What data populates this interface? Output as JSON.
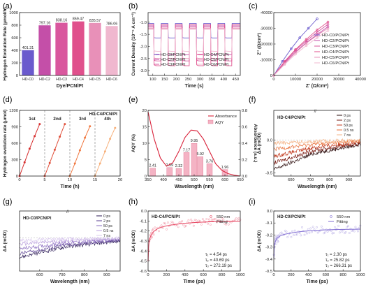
{
  "chart_data": [
    {
      "panel": "(a)",
      "type": "bar",
      "ylabel": "Hydrogen Evolution Rate (μmol/h)",
      "xlabel": "Dye/PCN/Pt",
      "categories": [
        "HD-C0",
        "HD-C2",
        "HD-C3",
        "HD-C4",
        "HD-C5",
        "HD-C6"
      ],
      "values": [
        401.31,
        797.16,
        838.16,
        859.47,
        835.57,
        786.06
      ],
      "value_labels": [
        "401.31",
        "797.16",
        "838.16",
        "859.47",
        "835.57",
        "786.06"
      ],
      "colors": [
        "#6a5acd",
        "#c44fa8",
        "#d9579e",
        "#e0508c",
        "#e890b8",
        "#f0b8cf"
      ],
      "ylim": [
        0,
        1000
      ],
      "yticks": [
        "0",
        "200",
        "400",
        "600",
        "800",
        "1000"
      ]
    },
    {
      "panel": "(b)",
      "type": "line",
      "ylabel": "Current Density (10⁻⁶ A cm⁻²)",
      "xlabel": "Time (s)",
      "xlim": [
        80,
        470
      ],
      "ylim": [
        -3.2,
        -0.6
      ],
      "xticks": [
        "100",
        "150",
        "200",
        "250",
        "300",
        "350",
        "400",
        "450"
      ],
      "yticks": [
        "-3.0",
        "-2.5",
        "-2.0",
        "-1.5",
        "-1.0"
      ],
      "legend": [
        "HD-C0/PCN/Pt",
        "HD-C4/PCN/Pt",
        "HD-C2/PCN/Pt",
        "HD-C5/PCN/Pt",
        "HD-C3/PCN/Pt",
        "HD-C6/PCN/Pt"
      ],
      "series": [
        {
          "name": "HD-C0/PCN/Pt",
          "color": "#6a5acd",
          "dark": -1.05,
          "light": -1.65
        },
        {
          "name": "HD-C2/PCN/Pt",
          "color": "#c44fa8",
          "dark": -1.15,
          "light": -2.35
        },
        {
          "name": "HD-C3/PCN/Pt",
          "color": "#d9579e",
          "dark": -1.2,
          "light": -2.6
        },
        {
          "name": "HD-C4/PCN/Pt",
          "color": "#e0508c",
          "dark": -1.1,
          "light": -2.8
        },
        {
          "name": "HD-C5/PCN/Pt",
          "color": "#e890b8",
          "dark": -1.25,
          "light": -2.5
        },
        {
          "name": "HD-C6/PCN/Pt",
          "color": "#f0b8cf",
          "dark": -1.3,
          "light": -2.2
        }
      ]
    },
    {
      "panel": "(c)",
      "type": "scatter",
      "ylabel": "Z'' (Ω/cm²)",
      "xlabel": "Z' (Ω/cm²)",
      "xlim": [
        0,
        40000
      ],
      "ylim": [
        0,
        -40000
      ],
      "xticks": [
        "0",
        "10000",
        "20000",
        "30000",
        "40000"
      ],
      "yticks": [
        "0",
        "-10000",
        "-20000",
        "-30000",
        "-40000"
      ],
      "legend": [
        "HD-C0/PCN/Pt",
        "HD-C2/PCN/Pt",
        "HD-C3/PCN/Pt",
        "HD-C4/PCN/Pt",
        "HD-C5/PCN/Pt",
        "HD-C6/PCN/Pt"
      ],
      "series": [
        {
          "name": "HD-C0/PCN/Pt",
          "color": "#6a5acd",
          "x": [
            0,
            4000,
            8000,
            12000,
            16000,
            20000
          ],
          "y": [
            0,
            -9000,
            -17000,
            -24000,
            -30000,
            -36000
          ]
        },
        {
          "name": "HD-C2/PCN/Pt",
          "color": "#c44fa8",
          "x": [
            0,
            5000,
            10000,
            15000,
            20000,
            25000
          ],
          "y": [
            0,
            -8000,
            -15000,
            -21000,
            -26000,
            -31000
          ]
        },
        {
          "name": "HD-C3/PCN/Pt",
          "color": "#d9579e",
          "x": [
            0,
            5000,
            10000,
            15000,
            20000,
            25000
          ],
          "y": [
            0,
            -8500,
            -16000,
            -22000,
            -27500,
            -32500
          ]
        },
        {
          "name": "HD-C4/PCN/Pt",
          "color": "#e0508c",
          "x": [
            0,
            5000,
            10000,
            15000,
            20000,
            25000
          ],
          "y": [
            0,
            -9000,
            -16500,
            -23000,
            -29000,
            -34000
          ]
        },
        {
          "name": "HD-C5/PCN/Pt",
          "color": "#e890b8",
          "x": [
            0,
            5000,
            10000,
            15000,
            20000,
            25000
          ],
          "y": [
            0,
            -7500,
            -14500,
            -20500,
            -25500,
            -30000
          ]
        },
        {
          "name": "HD-C6/PCN/Pt",
          "color": "#f0b8cf",
          "x": [
            0,
            5000,
            10000,
            15000,
            20000,
            25000
          ],
          "y": [
            0,
            -7000,
            -13500,
            -19000,
            -24000,
            -28500
          ]
        }
      ]
    },
    {
      "panel": "(d)",
      "type": "line",
      "ylabel": "Hydrogen evolution rate (μmol)",
      "xlabel": "Time (h)",
      "title": "HD-C4/PCN/Pt",
      "xlim": [
        0,
        20
      ],
      "ylim": [
        0,
        1200
      ],
      "xticks": [
        "0",
        "5",
        "10",
        "15",
        "20"
      ],
      "yticks": [
        "0",
        "300",
        "600",
        "900",
        "1200"
      ],
      "cycles": [
        "1st",
        "2nd",
        "3rd",
        "4th"
      ],
      "series": [
        {
          "name": "1st",
          "color": "#d62d2d",
          "x": [
            0,
            1,
            2,
            3,
            4
          ],
          "y": [
            0,
            250,
            500,
            730,
            950
          ]
        },
        {
          "name": "2nd",
          "color": "#e04f3a",
          "x": [
            5,
            6,
            7,
            8,
            9
          ],
          "y": [
            0,
            240,
            480,
            720,
            950
          ]
        },
        {
          "name": "3rd",
          "color": "#f07840",
          "x": [
            10,
            11,
            12,
            13,
            14
          ],
          "y": [
            0,
            230,
            470,
            700,
            910
          ]
        },
        {
          "name": "4th",
          "color": "#f7b07a",
          "x": [
            15,
            16,
            17,
            18,
            19
          ],
          "y": [
            0,
            230,
            450,
            680,
            880
          ]
        }
      ]
    },
    {
      "panel": "(e)",
      "type": "bar",
      "ylabel": "AQY (%)",
      "y2label": "Absorbance (a.u.)",
      "xlabel": "Wavelength (nm)",
      "legend": [
        "Absorbance",
        "AQY"
      ],
      "xlim": [
        350,
        650
      ],
      "ylim": [
        0,
        20
      ],
      "y2lim": [
        0,
        0.8
      ],
      "xticks": [
        "350",
        "400",
        "450",
        "500",
        "550",
        "600",
        "650"
      ],
      "yticks": [
        "0",
        "5",
        "10",
        "15",
        "20"
      ],
      "y2ticks": [
        "0.0",
        "0.2",
        "0.4",
        "0.6",
        "0.8"
      ],
      "x": [
        365,
        420,
        450,
        475,
        500,
        520,
        550,
        600
      ],
      "values": [
        2.41,
        2.59,
        2.32,
        7.17,
        9.95,
        5.92,
        3.76,
        1.96
      ],
      "value_labels": [
        "2.41",
        "2.59",
        "2.32",
        "7.17",
        "9.95",
        "5.92",
        "3.76",
        "1.96"
      ],
      "absorbance_x": [
        350,
        370,
        390,
        410,
        430,
        450,
        470,
        490,
        510,
        530,
        550,
        570,
        590,
        610,
        630,
        650
      ],
      "absorbance_y": [
        0.78,
        0.45,
        0.22,
        0.12,
        0.16,
        0.3,
        0.47,
        0.56,
        0.55,
        0.45,
        0.3,
        0.15,
        0.07,
        0.03,
        0.01,
        0.0
      ]
    },
    {
      "panel": "(f)",
      "type": "line",
      "ylabel": "ΔA (mOD)",
      "xlabel": "Wavelength (nm)",
      "title": "HD-C4/PCN/Pt",
      "xlim": [
        510,
        960
      ],
      "ylim": [
        -0.55,
        0.45
      ],
      "xticks": [
        "600",
        "700",
        "800",
        "900"
      ],
      "yticks": [
        "-0.5",
        "0.0"
      ],
      "legend": [
        "0 ps",
        "2 ps",
        "50 ps",
        "0.5 ns",
        "7 ns"
      ],
      "series": [
        {
          "name": "0 ps",
          "color": "#2a0b0b",
          "base": -0.45
        },
        {
          "name": "2 ps",
          "color": "#7a1c14",
          "base": -0.35
        },
        {
          "name": "50 ps",
          "color": "#c23a1e",
          "base": -0.25
        },
        {
          "name": "0.5 ns",
          "color": "#e8703a",
          "base": -0.14
        },
        {
          "name": "7 ns",
          "color": "#f4b58a",
          "base": -0.05
        }
      ]
    },
    {
      "panel": "(g)",
      "type": "line",
      "ylabel": "ΔA (mOD)",
      "xlabel": "Wavelength (nm)",
      "title": "HD-C0/PCN/Pt",
      "xlim": [
        510,
        960
      ],
      "ylim": [
        -0.55,
        0.45
      ],
      "xticks": [
        "600",
        "700",
        "800",
        "900"
      ],
      "legend": [
        "0 ps",
        "2 ps",
        "50 ps",
        "0.5 ns",
        "7 ns"
      ],
      "series": [
        {
          "name": "0 ps",
          "color": "#2b1a55",
          "base": -0.32
        },
        {
          "name": "2 ps",
          "color": "#5a3f92",
          "base": -0.26
        },
        {
          "name": "50 ps",
          "color": "#8a6cc0",
          "base": -0.18
        },
        {
          "name": "0.5 ns",
          "color": "#b89ddc",
          "base": -0.1
        },
        {
          "name": "7 ns",
          "color": "#d9c9ee",
          "base": -0.04
        }
      ]
    },
    {
      "panel": "(h)",
      "type": "scatter",
      "ylabel": "ΔA (mOD)",
      "xlabel": "Time (ps)",
      "title": "HD-C4/PCN/Pt",
      "xlim": [
        0,
        1000
      ],
      "ylim": [
        -0.6,
        0.0
      ],
      "xticks": [
        "0",
        "200",
        "400",
        "600",
        "800",
        "1000"
      ],
      "yticks": [
        "-0.6",
        "-0.5",
        "-0.4",
        "-0.3",
        "-0.2",
        "-0.1",
        "0.0"
      ],
      "legend": [
        "550 nm",
        "Fitting"
      ],
      "color": "#e8506a",
      "annotations": [
        "τ₁ = 4.54 ps",
        "τ₂ = 40.69 ps",
        "τ₃ = 272.19 ps"
      ],
      "fit": {
        "tau": [
          4.54,
          40.69,
          272.19
        ],
        "amp": [
          -0.22,
          -0.12,
          -0.1
        ],
        "offset": -0.1
      }
    },
    {
      "panel": "(i)",
      "type": "scatter",
      "ylabel": "ΔA (mOD)",
      "xlabel": "Time (ps)",
      "title": "HD-C0/PCN/Pt",
      "xlim": [
        0,
        1000
      ],
      "ylim": [
        -0.5,
        0.0
      ],
      "xticks": [
        "0",
        "200",
        "400",
        "600",
        "800",
        "1000"
      ],
      "yticks": [
        "-0.5",
        "-0.4",
        "-0.3",
        "-0.2",
        "-0.1",
        "0.0"
      ],
      "legend": [
        "550 nm",
        "Fitting"
      ],
      "color": "#8a78d6",
      "annotations": [
        "τ₁ = 2.30 ps",
        "τ₂ = 25.82 ps",
        "τ₃ = 266.31 ps"
      ],
      "fit": {
        "tau": [
          2.3,
          25.82,
          266.31
        ],
        "amp": [
          -0.15,
          -0.08,
          -0.07
        ],
        "offset": -0.15
      }
    }
  ]
}
